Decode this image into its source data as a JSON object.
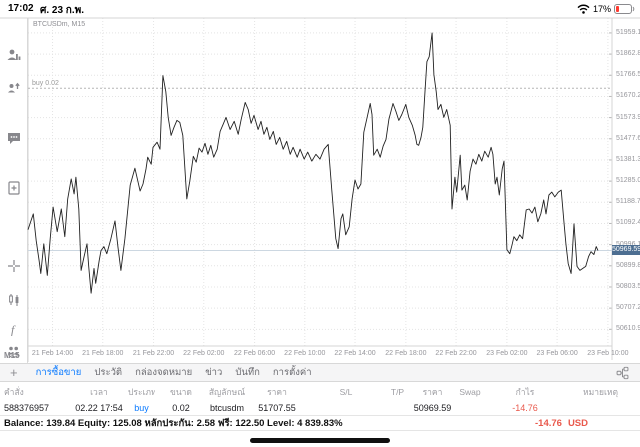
{
  "status_bar": {
    "time": "17:02",
    "date": "ศ. 23 ก.พ.",
    "battery_percent": "17%"
  },
  "sidebar": {
    "timeframe": "M15"
  },
  "chart": {
    "symbol_label": "BTCUSDm, M15",
    "buy_line": {
      "label": "buy 0.02",
      "price": 51707.55
    },
    "current_price": {
      "label": "50969.59",
      "price": 50969.59,
      "badge_color": "#4d6e91"
    },
    "colors": {
      "line": "#222222",
      "grid": "#e4e4e4",
      "axis_line": "#d4d4d4",
      "buy_line": "#b5b5b5",
      "current_line": "#ccd7e1",
      "axis_text": "#96969b"
    }
  },
  "chart_data": {
    "type": "line",
    "title": "BTCUSDm, M15",
    "symbol": "BTCUSDm",
    "timeframe": "M15",
    "x_axis": {
      "ticks": [
        {
          "label": "21 Feb 14:00",
          "f": 0.042
        },
        {
          "label": "21 Feb 18:00",
          "f": 0.128
        },
        {
          "label": "21 Feb 22:00",
          "f": 0.215
        },
        {
          "label": "22 Feb 02:00",
          "f": 0.301
        },
        {
          "label": "22 Feb 06:00",
          "f": 0.388
        },
        {
          "label": "22 Feb 10:00",
          "f": 0.474
        },
        {
          "label": "22 Feb 14:00",
          "f": 0.56
        },
        {
          "label": "22 Feb 18:00",
          "f": 0.647
        },
        {
          "label": "22 Feb 22:00",
          "f": 0.733
        },
        {
          "label": "23 Feb 02:00",
          "f": 0.82
        },
        {
          "label": "23 Feb 06:00",
          "f": 0.906
        },
        {
          "label": "23 Feb 10:00",
          "f": 0.993
        }
      ]
    },
    "y_axis": {
      "range": [
        50535,
        52027
      ],
      "tick_step": 96.3,
      "ticks": [
        51959.1,
        51862.8,
        51766.5,
        51670.2,
        51573.9,
        51477.6,
        51381.3,
        51285.0,
        51188.7,
        51092.4,
        50996.1,
        50899.8,
        50803.5,
        50707.2,
        50610.9
      ]
    },
    "annotations": {
      "buy_line_price": 51707.55,
      "buy_line_label": "buy 0.02",
      "current_price": 50969.59
    },
    "points_fx_price": [
      [
        0.0,
        51064
      ],
      [
        0.009,
        51136
      ],
      [
        0.014,
        51014
      ],
      [
        0.019,
        50924
      ],
      [
        0.022,
        50865
      ],
      [
        0.027,
        51000
      ],
      [
        0.033,
        50856
      ],
      [
        0.038,
        51023
      ],
      [
        0.043,
        51167
      ],
      [
        0.05,
        51055
      ],
      [
        0.057,
        51158
      ],
      [
        0.063,
        51032
      ],
      [
        0.068,
        51204
      ],
      [
        0.074,
        51295
      ],
      [
        0.079,
        51227
      ],
      [
        0.082,
        51303
      ],
      [
        0.087,
        51158
      ],
      [
        0.091,
        50879
      ],
      [
        0.096,
        50942
      ],
      [
        0.101,
        51000
      ],
      [
        0.104,
        50897
      ],
      [
        0.108,
        50775
      ],
      [
        0.113,
        50888
      ],
      [
        0.116,
        50820
      ],
      [
        0.122,
        50924
      ],
      [
        0.125,
        50969
      ],
      [
        0.13,
        50987
      ],
      [
        0.135,
        50955
      ],
      [
        0.142,
        51023
      ],
      [
        0.149,
        51104
      ],
      [
        0.154,
        50987
      ],
      [
        0.159,
        50879
      ],
      [
        0.166,
        51023
      ],
      [
        0.175,
        51267
      ],
      [
        0.183,
        51344
      ],
      [
        0.192,
        51240
      ],
      [
        0.197,
        51272
      ],
      [
        0.202,
        51340
      ],
      [
        0.205,
        51394
      ],
      [
        0.211,
        51362
      ],
      [
        0.214,
        51439
      ],
      [
        0.221,
        51462
      ],
      [
        0.226,
        51430
      ],
      [
        0.231,
        51765
      ],
      [
        0.236,
        51692
      ],
      [
        0.24,
        51575
      ],
      [
        0.245,
        51493
      ],
      [
        0.25,
        51530
      ],
      [
        0.255,
        51561
      ],
      [
        0.26,
        51552
      ],
      [
        0.265,
        51493
      ],
      [
        0.272,
        51204
      ],
      [
        0.277,
        51285
      ],
      [
        0.283,
        51398
      ],
      [
        0.288,
        51371
      ],
      [
        0.293,
        51435
      ],
      [
        0.298,
        51417
      ],
      [
        0.303,
        51457
      ],
      [
        0.308,
        51407
      ],
      [
        0.313,
        51448
      ],
      [
        0.318,
        51394
      ],
      [
        0.324,
        51430
      ],
      [
        0.329,
        51511
      ],
      [
        0.334,
        51543
      ],
      [
        0.339,
        51575
      ],
      [
        0.346,
        51520
      ],
      [
        0.353,
        51557
      ],
      [
        0.36,
        51498
      ],
      [
        0.365,
        51566
      ],
      [
        0.372,
        51643
      ],
      [
        0.377,
        51611
      ],
      [
        0.382,
        51548
      ],
      [
        0.387,
        51584
      ],
      [
        0.394,
        51520
      ],
      [
        0.399,
        51557
      ],
      [
        0.404,
        51498
      ],
      [
        0.409,
        51530
      ],
      [
        0.414,
        51475
      ],
      [
        0.42,
        51511
      ],
      [
        0.425,
        51452
      ],
      [
        0.431,
        51484
      ],
      [
        0.437,
        51430
      ],
      [
        0.443,
        51466
      ],
      [
        0.449,
        51407
      ],
      [
        0.454,
        51439
      ],
      [
        0.461,
        51394
      ],
      [
        0.466,
        51430
      ],
      [
        0.473,
        51385
      ],
      [
        0.479,
        51417
      ],
      [
        0.486,
        51376
      ],
      [
        0.493,
        51407
      ],
      [
        0.5,
        51385
      ],
      [
        0.507,
        51430
      ],
      [
        0.514,
        51452
      ],
      [
        0.52,
        51249
      ],
      [
        0.527,
        51023
      ],
      [
        0.531,
        50978
      ],
      [
        0.536,
        51114
      ],
      [
        0.539,
        51136
      ],
      [
        0.544,
        51041
      ],
      [
        0.55,
        51077
      ],
      [
        0.555,
        51204
      ],
      [
        0.56,
        51290
      ],
      [
        0.565,
        51249
      ],
      [
        0.57,
        51272
      ],
      [
        0.575,
        51507
      ],
      [
        0.58,
        51566
      ],
      [
        0.586,
        51638
      ],
      [
        0.589,
        51588
      ],
      [
        0.592,
        51403
      ],
      [
        0.598,
        51430
      ],
      [
        0.603,
        51394
      ],
      [
        0.608,
        51444
      ],
      [
        0.613,
        51475
      ],
      [
        0.618,
        51566
      ],
      [
        0.625,
        51638
      ],
      [
        0.63,
        51602
      ],
      [
        0.635,
        51561
      ],
      [
        0.64,
        51588
      ],
      [
        0.647,
        51634
      ],
      [
        0.652,
        51575
      ],
      [
        0.658,
        51539
      ],
      [
        0.663,
        51493
      ],
      [
        0.666,
        51452
      ],
      [
        0.669,
        51448
      ],
      [
        0.673,
        51484
      ],
      [
        0.676,
        51530
      ],
      [
        0.68,
        51701
      ],
      [
        0.683,
        51828
      ],
      [
        0.687,
        51851
      ],
      [
        0.692,
        51959
      ],
      [
        0.695,
        51769
      ],
      [
        0.699,
        51692
      ],
      [
        0.702,
        51611
      ],
      [
        0.707,
        51634
      ],
      [
        0.712,
        51575
      ],
      [
        0.717,
        51611
      ],
      [
        0.723,
        51539
      ],
      [
        0.726,
        51158
      ],
      [
        0.731,
        51303
      ],
      [
        0.734,
        51235
      ],
      [
        0.74,
        51403
      ],
      [
        0.743,
        51244
      ],
      [
        0.748,
        51267
      ],
      [
        0.752,
        51199
      ],
      [
        0.757,
        51330
      ],
      [
        0.762,
        51385
      ],
      [
        0.767,
        51362
      ],
      [
        0.772,
        51407
      ],
      [
        0.777,
        51376
      ],
      [
        0.782,
        51421
      ],
      [
        0.788,
        51394
      ],
      [
        0.793,
        51439
      ],
      [
        0.796,
        51407
      ],
      [
        0.8,
        51272
      ],
      [
        0.803,
        51303
      ],
      [
        0.807,
        51222
      ],
      [
        0.812,
        51340
      ],
      [
        0.815,
        51376
      ],
      [
        0.82,
        50973
      ],
      [
        0.825,
        50955
      ],
      [
        0.829,
        50996
      ],
      [
        0.832,
        51032
      ],
      [
        0.837,
        51014
      ],
      [
        0.842,
        51041
      ],
      [
        0.847,
        51023
      ],
      [
        0.853,
        51154
      ],
      [
        0.858,
        51158
      ],
      [
        0.863,
        51140
      ],
      [
        0.868,
        51167
      ],
      [
        0.873,
        51100
      ],
      [
        0.878,
        51136
      ],
      [
        0.883,
        51199
      ],
      [
        0.887,
        51136
      ],
      [
        0.892,
        51222
      ],
      [
        0.897,
        51235
      ],
      [
        0.902,
        51213
      ],
      [
        0.908,
        51235
      ],
      [
        0.913,
        51244
      ],
      [
        0.918,
        51091
      ],
      [
        0.921,
        51000
      ],
      [
        0.925,
        50910
      ],
      [
        0.93,
        50865
      ],
      [
        0.935,
        51091
      ],
      [
        0.94,
        50897
      ],
      [
        0.945,
        50879
      ],
      [
        0.95,
        50888
      ],
      [
        0.955,
        50897
      ],
      [
        0.96,
        50942
      ],
      [
        0.964,
        50964
      ],
      [
        0.969,
        50951
      ],
      [
        0.973,
        50987
      ],
      [
        0.976,
        50969
      ]
    ]
  },
  "tabs": {
    "plus": "+",
    "items": [
      {
        "label": "การซื้อขาย",
        "active": true
      },
      {
        "label": "ประวัติ",
        "active": false
      },
      {
        "label": "กล่องจดหมาย",
        "active": false
      },
      {
        "label": "ข่าว",
        "active": false
      },
      {
        "label": "บันทึก",
        "active": false
      },
      {
        "label": "การตั้งค่า",
        "active": false
      }
    ]
  },
  "table": {
    "headers": [
      "คำสั่ง",
      "เวลา",
      "ประเภท",
      "ขนาด",
      "สัญลักษณ์",
      "ราคา",
      "S/L",
      "T/P",
      "ราคา",
      "Swap",
      "กำไร",
      "หมายเหตุ"
    ],
    "row": [
      "588376957",
      "02.22 17:54",
      "buy",
      "0.02",
      "btcusdm",
      "51707.55",
      "",
      "",
      "50969.59",
      "",
      "-14.76",
      ""
    ]
  },
  "balance_row": {
    "summary": "Balance: 139.84 Equity: 125.08 หลักประกัน: 2.58 ฟรี: 122.50 Level: 4 839.83%",
    "profit": "-14.76",
    "currency": "USD"
  }
}
